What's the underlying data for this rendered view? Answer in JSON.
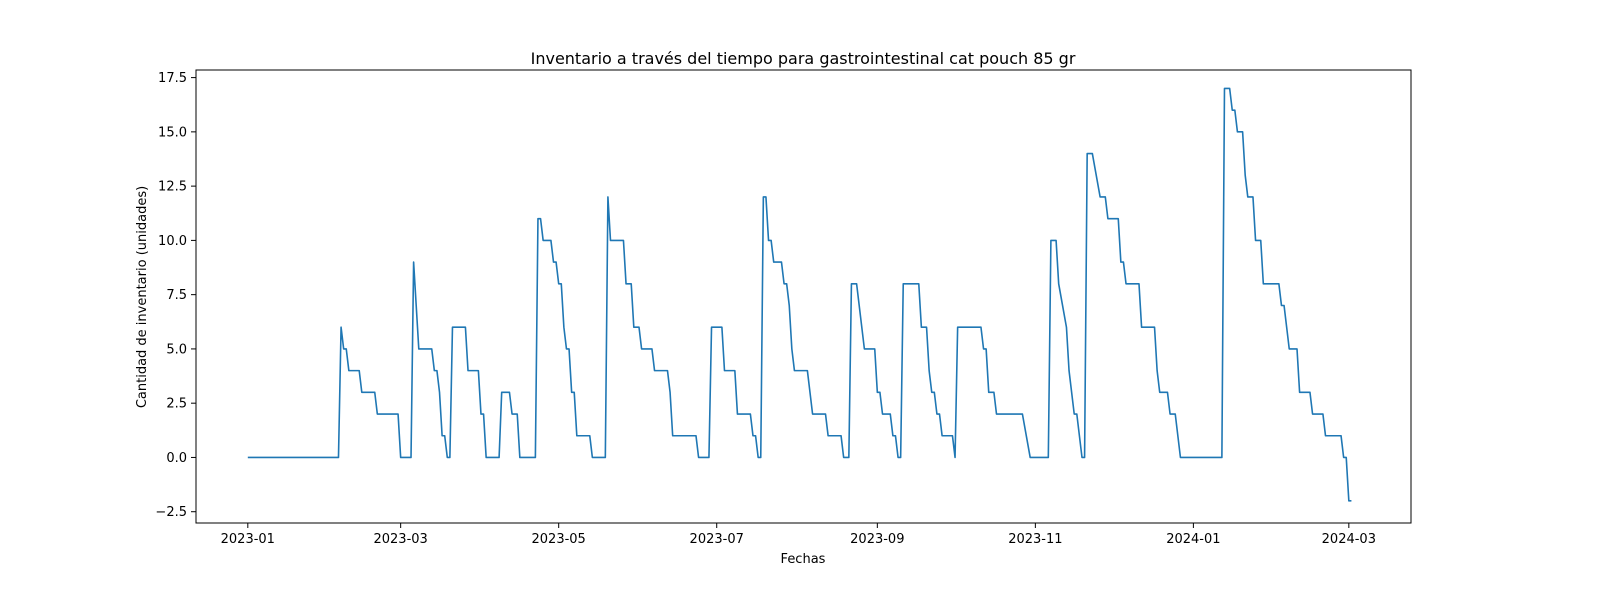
{
  "chart_data": {
    "type": "line",
    "title": "Inventario a través del tiempo para gastrointestinal cat pouch 85 gr",
    "xlabel": "Fechas",
    "ylabel": "Cantidad de inventario (unidades)",
    "x_axis": "date",
    "xlim": [
      "2022-12-12",
      "2024-03-25"
    ],
    "ylim": [
      -3.02,
      17.85
    ],
    "grid": false,
    "x_ticks": [
      "2023-01",
      "2023-03",
      "2023-05",
      "2023-07",
      "2023-09",
      "2023-11",
      "2024-01",
      "2024-03"
    ],
    "y_ticks": [
      -2.5,
      0.0,
      2.5,
      5.0,
      7.5,
      10.0,
      12.5,
      15.0,
      17.5
    ],
    "series": [
      {
        "color": "#1f77b4",
        "points": [
          [
            "2023-01-01",
            0
          ],
          [
            "2023-02-05",
            0
          ],
          [
            "2023-02-06",
            6
          ],
          [
            "2023-02-07",
            5
          ],
          [
            "2023-02-08",
            5
          ],
          [
            "2023-02-09",
            4
          ],
          [
            "2023-02-13",
            4
          ],
          [
            "2023-02-14",
            3
          ],
          [
            "2023-02-19",
            3
          ],
          [
            "2023-02-20",
            2
          ],
          [
            "2023-02-28",
            2
          ],
          [
            "2023-03-01",
            0
          ],
          [
            "2023-03-05",
            0
          ],
          [
            "2023-03-06",
            9
          ],
          [
            "2023-03-07",
            7
          ],
          [
            "2023-03-08",
            5
          ],
          [
            "2023-03-13",
            5
          ],
          [
            "2023-03-14",
            4
          ],
          [
            "2023-03-15",
            4
          ],
          [
            "2023-03-16",
            3
          ],
          [
            "2023-03-17",
            1
          ],
          [
            "2023-03-18",
            1
          ],
          [
            "2023-03-19",
            0
          ],
          [
            "2023-03-20",
            0
          ],
          [
            "2023-03-21",
            6
          ],
          [
            "2023-03-26",
            6
          ],
          [
            "2023-03-27",
            4
          ],
          [
            "2023-03-31",
            4
          ],
          [
            "2023-04-01",
            2
          ],
          [
            "2023-04-02",
            2
          ],
          [
            "2023-04-03",
            0
          ],
          [
            "2023-04-08",
            0
          ],
          [
            "2023-04-09",
            3
          ],
          [
            "2023-04-12",
            3
          ],
          [
            "2023-04-13",
            2
          ],
          [
            "2023-04-15",
            2
          ],
          [
            "2023-04-16",
            0
          ],
          [
            "2023-04-22",
            0
          ],
          [
            "2023-04-23",
            11
          ],
          [
            "2023-04-24",
            11
          ],
          [
            "2023-04-25",
            10
          ],
          [
            "2023-04-28",
            10
          ],
          [
            "2023-04-29",
            9
          ],
          [
            "2023-04-30",
            9
          ],
          [
            "2023-05-01",
            8
          ],
          [
            "2023-05-02",
            8
          ],
          [
            "2023-05-03",
            6
          ],
          [
            "2023-05-04",
            5
          ],
          [
            "2023-05-05",
            5
          ],
          [
            "2023-05-06",
            3
          ],
          [
            "2023-05-07",
            3
          ],
          [
            "2023-05-08",
            1
          ],
          [
            "2023-05-13",
            1
          ],
          [
            "2023-05-14",
            0
          ],
          [
            "2023-05-19",
            0
          ],
          [
            "2023-05-20",
            12
          ],
          [
            "2023-05-21",
            10
          ],
          [
            "2023-05-26",
            10
          ],
          [
            "2023-05-27",
            8
          ],
          [
            "2023-05-29",
            8
          ],
          [
            "2023-05-30",
            6
          ],
          [
            "2023-06-01",
            6
          ],
          [
            "2023-06-02",
            5
          ],
          [
            "2023-06-06",
            5
          ],
          [
            "2023-06-07",
            4
          ],
          [
            "2023-06-12",
            4
          ],
          [
            "2023-06-13",
            3
          ],
          [
            "2023-06-14",
            1
          ],
          [
            "2023-06-23",
            1
          ],
          [
            "2023-06-24",
            0
          ],
          [
            "2023-06-28",
            0
          ],
          [
            "2023-06-29",
            6
          ],
          [
            "2023-07-03",
            6
          ],
          [
            "2023-07-04",
            4
          ],
          [
            "2023-07-08",
            4
          ],
          [
            "2023-07-09",
            2
          ],
          [
            "2023-07-14",
            2
          ],
          [
            "2023-07-15",
            1
          ],
          [
            "2023-07-16",
            1
          ],
          [
            "2023-07-17",
            0
          ],
          [
            "2023-07-18",
            0
          ],
          [
            "2023-07-19",
            12
          ],
          [
            "2023-07-20",
            12
          ],
          [
            "2023-07-21",
            10
          ],
          [
            "2023-07-22",
            10
          ],
          [
            "2023-07-23",
            9
          ],
          [
            "2023-07-26",
            9
          ],
          [
            "2023-07-27",
            8
          ],
          [
            "2023-07-28",
            8
          ],
          [
            "2023-07-29",
            7
          ],
          [
            "2023-07-30",
            5
          ],
          [
            "2023-07-31",
            4
          ],
          [
            "2023-08-05",
            4
          ],
          [
            "2023-08-06",
            3
          ],
          [
            "2023-08-07",
            2
          ],
          [
            "2023-08-12",
            2
          ],
          [
            "2023-08-13",
            1
          ],
          [
            "2023-08-18",
            1
          ],
          [
            "2023-08-19",
            0
          ],
          [
            "2023-08-21",
            0
          ],
          [
            "2023-08-22",
            8
          ],
          [
            "2023-08-24",
            8
          ],
          [
            "2023-08-27",
            5
          ],
          [
            "2023-08-31",
            5
          ],
          [
            "2023-09-01",
            3
          ],
          [
            "2023-09-02",
            3
          ],
          [
            "2023-09-03",
            2
          ],
          [
            "2023-09-06",
            2
          ],
          [
            "2023-09-07",
            1
          ],
          [
            "2023-09-08",
            1
          ],
          [
            "2023-09-09",
            0
          ],
          [
            "2023-09-10",
            0
          ],
          [
            "2023-09-11",
            8
          ],
          [
            "2023-09-17",
            8
          ],
          [
            "2023-09-18",
            6
          ],
          [
            "2023-09-20",
            6
          ],
          [
            "2023-09-21",
            4
          ],
          [
            "2023-09-22",
            3
          ],
          [
            "2023-09-23",
            3
          ],
          [
            "2023-09-24",
            2
          ],
          [
            "2023-09-25",
            2
          ],
          [
            "2023-09-26",
            1
          ],
          [
            "2023-09-30",
            1
          ],
          [
            "2023-10-01",
            0
          ],
          [
            "2023-10-02",
            6
          ],
          [
            "2023-10-11",
            6
          ],
          [
            "2023-10-12",
            5
          ],
          [
            "2023-10-13",
            5
          ],
          [
            "2023-10-14",
            3
          ],
          [
            "2023-10-16",
            3
          ],
          [
            "2023-10-17",
            2
          ],
          [
            "2023-10-27",
            2
          ],
          [
            "2023-10-30",
            0
          ],
          [
            "2023-11-06",
            0
          ],
          [
            "2023-11-07",
            10
          ],
          [
            "2023-11-09",
            10
          ],
          [
            "2023-11-10",
            8
          ],
          [
            "2023-11-13",
            6
          ],
          [
            "2023-11-14",
            4
          ],
          [
            "2023-11-16",
            2
          ],
          [
            "2023-11-17",
            2
          ],
          [
            "2023-11-19",
            0
          ],
          [
            "2023-11-20",
            0
          ],
          [
            "2023-11-21",
            14
          ],
          [
            "2023-11-23",
            14
          ],
          [
            "2023-11-26",
            12
          ],
          [
            "2023-11-28",
            12
          ],
          [
            "2023-11-29",
            11
          ],
          [
            "2023-12-03",
            11
          ],
          [
            "2023-12-04",
            9
          ],
          [
            "2023-12-05",
            9
          ],
          [
            "2023-12-06",
            8
          ],
          [
            "2023-12-11",
            8
          ],
          [
            "2023-12-12",
            6
          ],
          [
            "2023-12-17",
            6
          ],
          [
            "2023-12-18",
            4
          ],
          [
            "2023-12-19",
            3
          ],
          [
            "2023-12-22",
            3
          ],
          [
            "2023-12-23",
            2
          ],
          [
            "2023-12-25",
            2
          ],
          [
            "2023-12-27",
            0
          ],
          [
            "2024-01-12",
            0
          ],
          [
            "2024-01-13",
            17
          ],
          [
            "2024-01-15",
            17
          ],
          [
            "2024-01-16",
            16
          ],
          [
            "2024-01-17",
            16
          ],
          [
            "2024-01-18",
            15
          ],
          [
            "2024-01-20",
            15
          ],
          [
            "2024-01-21",
            13
          ],
          [
            "2024-01-22",
            12
          ],
          [
            "2024-01-24",
            12
          ],
          [
            "2024-01-25",
            10
          ],
          [
            "2024-01-27",
            10
          ],
          [
            "2024-01-28",
            8
          ],
          [
            "2024-02-03",
            8
          ],
          [
            "2024-02-04",
            7
          ],
          [
            "2024-02-05",
            7
          ],
          [
            "2024-02-06",
            6
          ],
          [
            "2024-02-07",
            5
          ],
          [
            "2024-02-10",
            5
          ],
          [
            "2024-02-11",
            3
          ],
          [
            "2024-02-15",
            3
          ],
          [
            "2024-02-16",
            2
          ],
          [
            "2024-02-20",
            2
          ],
          [
            "2024-02-21",
            1
          ],
          [
            "2024-02-27",
            1
          ],
          [
            "2024-02-28",
            0
          ],
          [
            "2024-02-29",
            0
          ],
          [
            "2024-03-01",
            -2
          ],
          [
            "2024-03-02",
            -2
          ]
        ]
      }
    ]
  }
}
